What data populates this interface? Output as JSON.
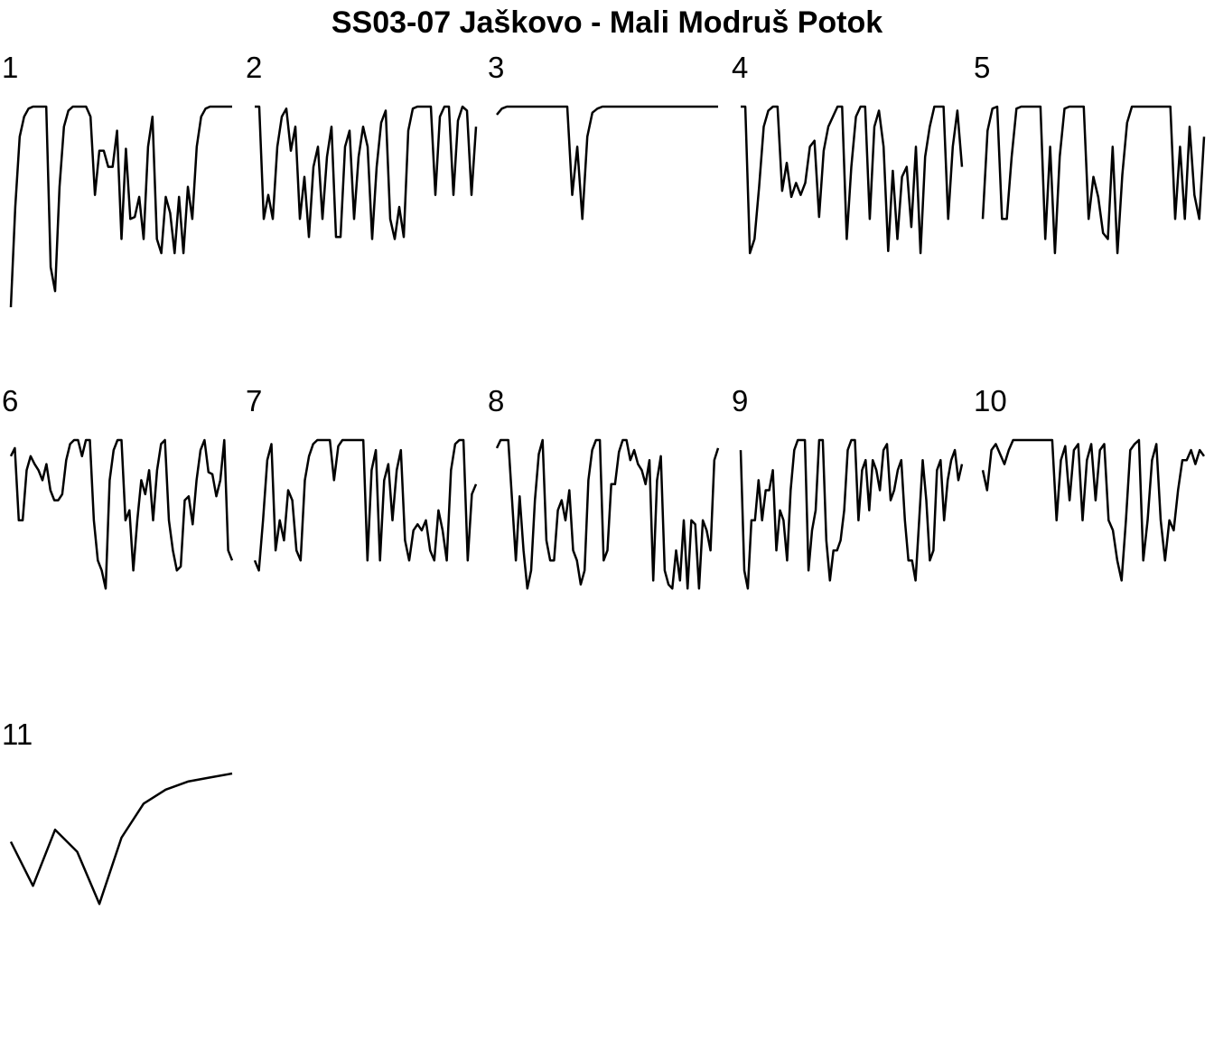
{
  "title": "SS03-07 Jaškovo - Mali Modruš Potok",
  "chart_data": [
    {
      "type": "line",
      "title": "1",
      "color": "#000000",
      "ylim": [
        0,
        100
      ],
      "values": [
        0,
        50,
        85,
        95,
        99,
        100,
        100,
        100,
        100,
        20,
        8,
        60,
        90,
        98,
        100,
        100,
        100,
        100,
        95,
        56,
        78,
        78,
        70,
        70,
        88,
        34,
        79,
        44,
        45,
        55,
        34,
        80,
        95,
        34,
        27,
        55,
        47,
        27,
        55,
        27,
        60,
        44,
        80,
        95,
        99,
        100,
        100,
        100,
        100,
        100,
        100
      ]
    },
    {
      "type": "line",
      "title": "2",
      "color": "#000000",
      "ylim": [
        0,
        100
      ],
      "values": [
        100,
        100,
        44,
        56,
        44,
        80,
        95,
        99,
        78,
        90,
        44,
        65,
        35,
        70,
        80,
        44,
        75,
        90,
        35,
        35,
        80,
        88,
        44,
        75,
        90,
        80,
        34,
        70,
        92,
        98,
        44,
        34,
        50,
        35,
        88,
        99,
        100,
        100,
        100,
        100,
        56,
        95,
        100,
        100,
        56,
        93,
        100,
        98,
        56,
        90
      ]
    },
    {
      "type": "line",
      "title": "3",
      "color": "#000000",
      "ylim": [
        0,
        100
      ],
      "values": [
        96,
        99,
        100,
        100,
        100,
        100,
        100,
        100,
        100,
        100,
        100,
        100,
        100,
        100,
        100,
        56,
        80,
        44,
        85,
        97,
        99,
        100,
        100,
        100,
        100,
        100,
        100,
        100,
        100,
        100,
        100,
        100,
        100,
        100,
        100,
        100,
        100,
        100,
        100,
        100,
        100,
        100,
        100,
        100,
        100
      ]
    },
    {
      "type": "line",
      "title": "4",
      "color": "#000000",
      "ylim": [
        0,
        100
      ],
      "values": [
        100,
        100,
        27,
        34,
        60,
        90,
        98,
        100,
        100,
        58,
        72,
        55,
        62,
        56,
        62,
        80,
        83,
        45,
        78,
        90,
        95,
        100,
        100,
        34,
        70,
        95,
        100,
        100,
        44,
        90,
        98,
        80,
        28,
        68,
        34,
        65,
        70,
        40,
        80,
        27,
        75,
        90,
        100,
        100,
        100,
        44,
        80,
        98,
        70
      ]
    },
    {
      "type": "line",
      "title": "5",
      "color": "#000000",
      "ylim": [
        0,
        100
      ],
      "values": [
        44,
        88,
        99,
        100,
        44,
        44,
        75,
        99,
        100,
        100,
        100,
        100,
        100,
        34,
        80,
        27,
        75,
        99,
        100,
        100,
        100,
        100,
        44,
        65,
        55,
        37,
        34,
        80,
        27,
        66,
        92,
        100,
        100,
        100,
        100,
        100,
        100,
        100,
        100,
        100,
        44,
        80,
        44,
        90,
        56,
        44,
        85
      ]
    },
    {
      "type": "line",
      "title": "6",
      "color": "#000000",
      "ylim": [
        0,
        100
      ],
      "values": [
        92,
        96,
        60,
        60,
        85,
        92,
        88,
        85,
        80,
        88,
        75,
        70,
        70,
        73,
        90,
        98,
        100,
        100,
        92,
        100,
        100,
        60,
        40,
        35,
        26,
        80,
        95,
        100,
        100,
        60,
        65,
        35,
        60,
        80,
        73,
        85,
        60,
        85,
        98,
        100,
        60,
        45,
        35,
        37,
        70,
        72,
        58,
        80,
        95,
        100,
        84,
        83,
        72,
        80,
        100,
        45,
        40
      ]
    },
    {
      "type": "line",
      "title": "7",
      "color": "#000000",
      "ylim": [
        0,
        100
      ],
      "values": [
        40,
        35,
        60,
        90,
        98,
        45,
        60,
        50,
        75,
        70,
        45,
        40,
        80,
        92,
        98,
        100,
        100,
        100,
        100,
        80,
        97,
        100,
        100,
        100,
        100,
        100,
        100,
        40,
        85,
        95,
        40,
        80,
        88,
        60,
        85,
        95,
        50,
        40,
        55,
        58,
        55,
        60,
        45,
        40,
        65,
        55,
        40,
        85,
        98,
        100,
        100,
        40,
        73,
        78
      ]
    },
    {
      "type": "line",
      "title": "8",
      "color": "#000000",
      "ylim": [
        0,
        100
      ],
      "values": [
        96,
        100,
        100,
        100,
        70,
        40,
        72,
        45,
        26,
        35,
        70,
        93,
        100,
        50,
        40,
        40,
        65,
        70,
        60,
        75,
        45,
        40,
        28,
        35,
        80,
        95,
        100,
        100,
        40,
        45,
        78,
        78,
        94,
        100,
        100,
        90,
        95,
        88,
        85,
        78,
        90,
        30,
        80,
        92,
        35,
        28,
        26,
        45,
        30,
        60,
        26,
        60,
        58,
        26,
        60,
        55,
        45,
        90,
        96
      ]
    },
    {
      "type": "line",
      "title": "9",
      "color": "#000000",
      "ylim": [
        0,
        100
      ],
      "values": [
        95,
        35,
        26,
        60,
        60,
        80,
        60,
        75,
        75,
        85,
        45,
        65,
        60,
        40,
        75,
        95,
        100,
        100,
        100,
        35,
        55,
        65,
        100,
        100,
        50,
        30,
        45,
        45,
        50,
        65,
        95,
        100,
        100,
        60,
        85,
        90,
        65,
        90,
        85,
        75,
        95,
        98,
        70,
        75,
        85,
        90,
        60,
        40,
        40,
        30,
        60,
        90,
        70,
        40,
        45,
        85,
        90,
        60,
        80,
        90,
        95,
        80,
        88
      ]
    },
    {
      "type": "line",
      "title": "10",
      "color": "#000000",
      "ylim": [
        0,
        100
      ],
      "values": [
        85,
        75,
        95,
        98,
        93,
        88,
        95,
        100,
        100,
        100,
        100,
        100,
        100,
        100,
        100,
        100,
        100,
        60,
        90,
        97,
        70,
        95,
        98,
        60,
        90,
        98,
        70,
        95,
        98,
        60,
        55,
        40,
        30,
        60,
        95,
        98,
        100,
        40,
        60,
        90,
        98,
        60,
        40,
        60,
        55,
        75,
        90,
        90,
        95,
        88,
        95,
        92
      ]
    },
    {
      "type": "line",
      "title": "11",
      "color": "#000000",
      "ylim": [
        0,
        100
      ],
      "values": [
        66,
        44,
        72,
        61,
        35,
        68,
        85,
        92,
        96,
        98,
        100
      ]
    }
  ]
}
